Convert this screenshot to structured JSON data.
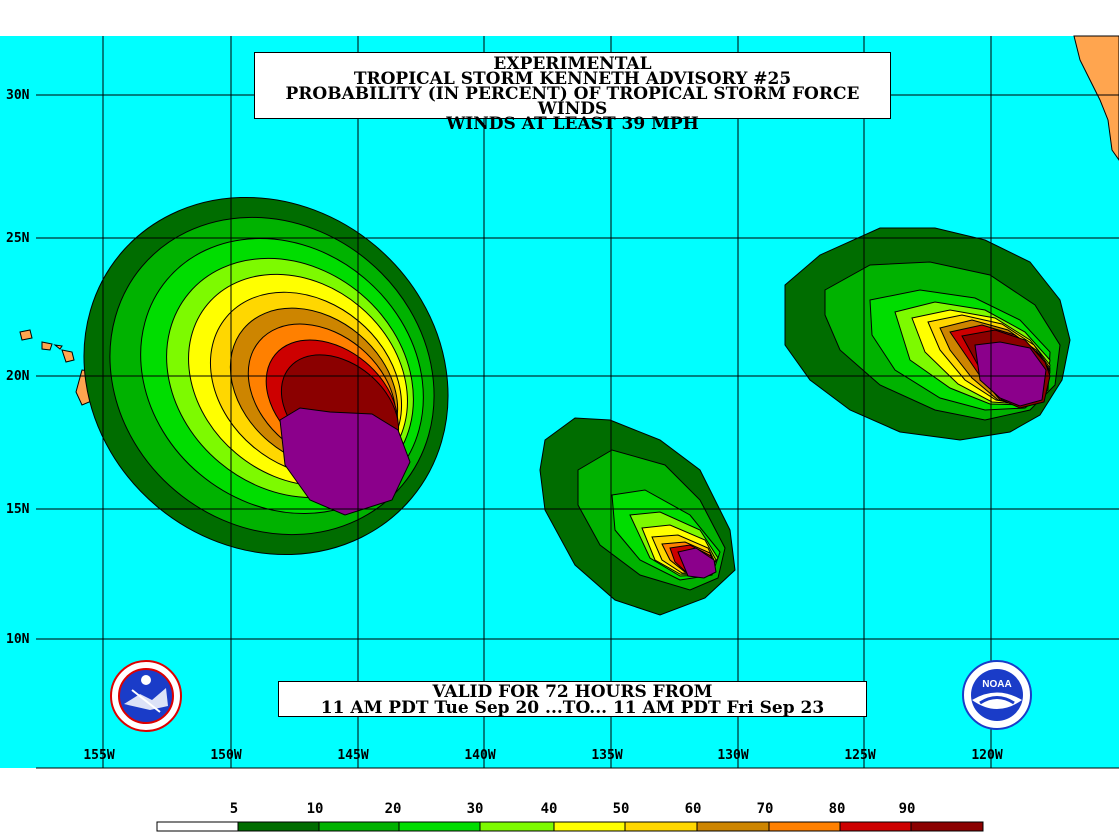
{
  "title": {
    "line1": "EXPERIMENTAL",
    "line2": "TROPICAL STORM KENNETH ADVISORY #25",
    "line3": "PROBABILITY (IN PERCENT) OF TROPICAL STORM FORCE WINDS",
    "line4": "WINDS AT LEAST 39 MPH"
  },
  "valid": {
    "line1": "VALID FOR 72 HOURS FROM",
    "line2": "11 AM PDT Tue Sep 20 ...TO... 11 AM PDT Fri Sep 23"
  },
  "lat_labels": [
    "30N",
    "25N",
    "20N",
    "15N",
    "10N"
  ],
  "lon_labels": [
    "155W",
    "150W",
    "145W",
    "140W",
    "135W",
    "130W",
    "125W",
    "120W"
  ],
  "legend": {
    "labels": [
      "5",
      "10",
      "20",
      "30",
      "40",
      "50",
      "60",
      "70",
      "80",
      "90"
    ],
    "colors": [
      "#ffffff",
      "#006d00",
      "#00b200",
      "#00dd00",
      "#7dfa00",
      "#ffff00",
      "#ffd700",
      "#cd8500",
      "#ff8000",
      "#cd0000",
      "#8b0000",
      "#8b008b"
    ]
  },
  "colors": {
    "ocean": "#00ffff",
    "land": "#ffa54f",
    "grid": "#000000"
  },
  "icons": [
    "nws-logo-icon",
    "noaa-logo-icon"
  ]
}
